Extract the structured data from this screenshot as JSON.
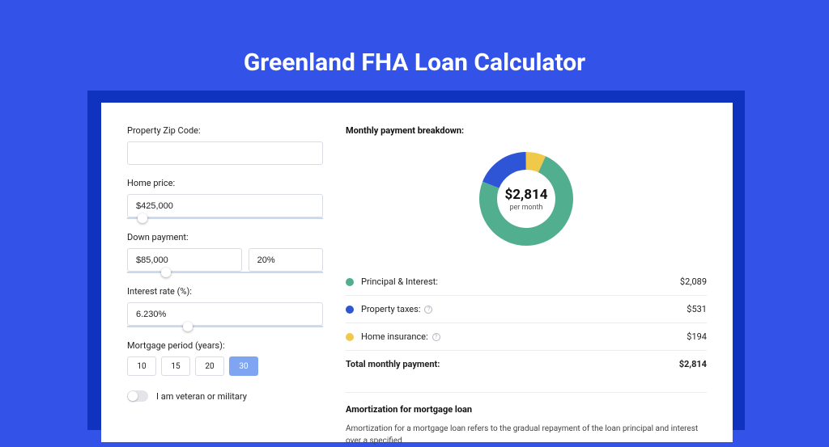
{
  "page": {
    "title": "Greenland FHA Loan Calculator",
    "bg_color": "#3252e8",
    "panel_bg": "#ffffff",
    "border_color": "#1033bf"
  },
  "form": {
    "zip": {
      "label": "Property Zip Code:",
      "value": ""
    },
    "home_price": {
      "label": "Home price:",
      "value": "$425,000",
      "slider_pct": 8
    },
    "down_payment": {
      "label": "Down payment:",
      "amount": "$85,000",
      "percent": "20%",
      "slider_pct": 20
    },
    "interest": {
      "label": "Interest rate (%):",
      "value": "6.230%",
      "slider_pct": 31
    },
    "period": {
      "label": "Mortgage period (years):",
      "options": [
        "10",
        "15",
        "20",
        "30"
      ],
      "selected": "30"
    },
    "veteran": {
      "label": "I am veteran or military",
      "checked": false
    }
  },
  "breakdown": {
    "title": "Monthly payment breakdown:",
    "center_amount": "$2,814",
    "center_sub": "per month",
    "items": [
      {
        "label": "Principal & Interest:",
        "value": "$2,089",
        "color": "#51ae8e",
        "angle": 267,
        "info": false
      },
      {
        "label": "Property taxes:",
        "value": "$531",
        "color": "#2e55d5",
        "angle": 68,
        "info": true
      },
      {
        "label": "Home insurance:",
        "value": "$194",
        "color": "#f0c94b",
        "angle": 25,
        "info": true
      }
    ],
    "total": {
      "label": "Total monthly payment:",
      "value": "$2,814"
    }
  },
  "amortization": {
    "title": "Amortization for mortgage loan",
    "text": "Amortization for a mortgage loan refers to the gradual repayment of the loan principal and interest over a specified"
  }
}
